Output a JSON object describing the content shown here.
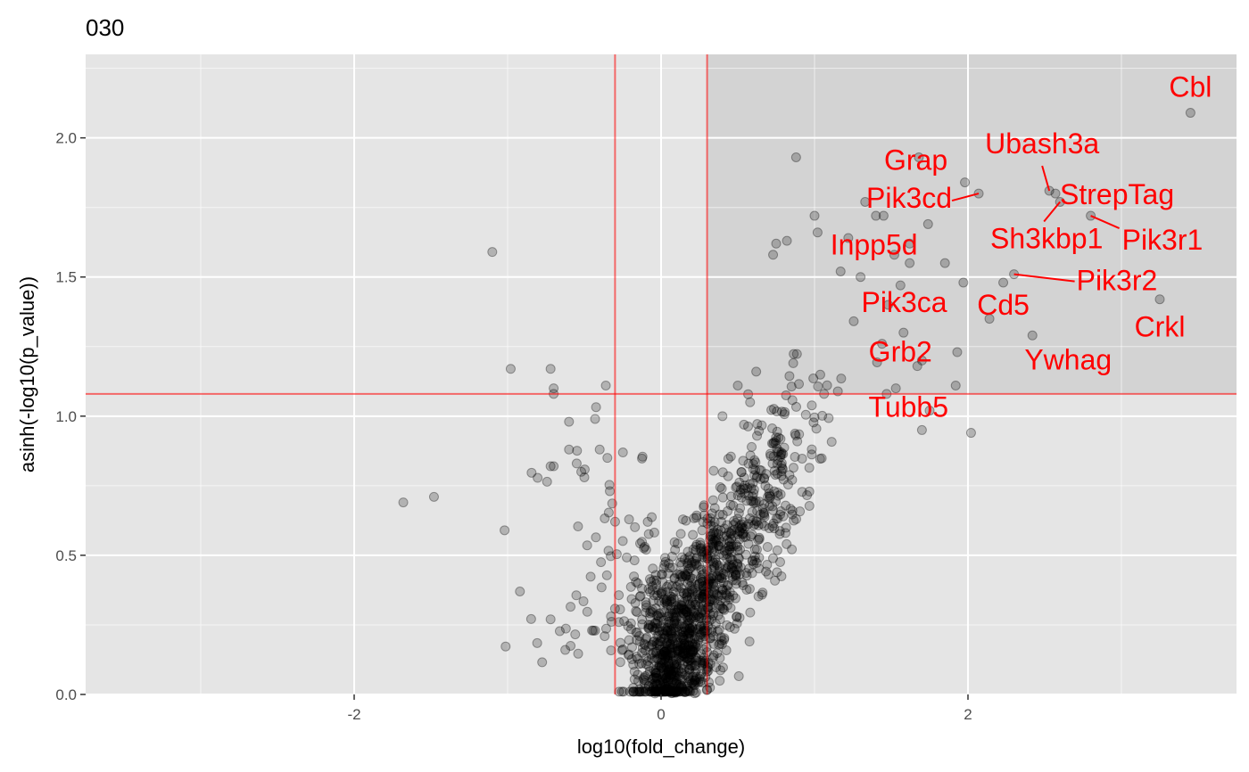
{
  "chart_data": {
    "type": "scatter",
    "title": "030",
    "xlabel": "log10(fold_change)",
    "ylabel": "asinh(-log10(p_value))",
    "xlim": [
      -3.75,
      3.75
    ],
    "ylim": [
      0,
      2.3
    ],
    "x_ticks": [
      -2,
      0,
      2
    ],
    "y_ticks": [
      0.0,
      0.5,
      1.0,
      1.5,
      2.0
    ],
    "x_tick_labels": [
      "-2",
      "0",
      "2"
    ],
    "y_tick_labels": [
      "0.0",
      "0.5",
      "1.0",
      "1.5",
      "2.0"
    ],
    "grid": true,
    "thresholds": {
      "x": [
        -0.3,
        0.3
      ],
      "y": 1.08
    },
    "highlight_region": {
      "x_min": 0.3,
      "y_min": 1.08
    },
    "colors": {
      "panel": "#e5e5e5",
      "highlight": "#d3d3d3",
      "grid": "#ffffff",
      "point": "#000000",
      "threshold": "#ff0000",
      "label": "#ff0000"
    },
    "labeled_points": [
      {
        "name": "Cbl",
        "x": 3.45,
        "y": 2.09
      },
      {
        "name": "Ubash3a",
        "x": 2.53,
        "y": 1.81
      },
      {
        "name": "StrepTag",
        "x": 2.57,
        "y": 1.8
      },
      {
        "name": "Grap",
        "x": 1.98,
        "y": 1.84
      },
      {
        "name": "Pik3cd",
        "x": 2.07,
        "y": 1.8
      },
      {
        "name": "Sh3kbp1",
        "x": 2.6,
        "y": 1.77
      },
      {
        "name": "Pik3r1",
        "x": 2.8,
        "y": 1.72
      },
      {
        "name": "Inpp5d",
        "x": 1.62,
        "y": 1.62
      },
      {
        "name": "Pik3r2",
        "x": 2.3,
        "y": 1.51
      },
      {
        "name": "Cd5",
        "x": 2.23,
        "y": 1.48
      },
      {
        "name": "Pik3ca",
        "x": 1.48,
        "y": 1.4
      },
      {
        "name": "Crkl",
        "x": 3.25,
        "y": 1.42
      },
      {
        "name": "Grb2",
        "x": 1.44,
        "y": 1.26
      },
      {
        "name": "Ywhag",
        "x": 2.42,
        "y": 1.29
      },
      {
        "name": "Tubb5",
        "x": 1.92,
        "y": 1.11
      }
    ],
    "points": [
      [
        3.45,
        2.09
      ],
      [
        2.53,
        1.81
      ],
      [
        2.57,
        1.8
      ],
      [
        1.98,
        1.84
      ],
      [
        2.07,
        1.8
      ],
      [
        2.6,
        1.77
      ],
      [
        2.8,
        1.72
      ],
      [
        1.62,
        1.62
      ],
      [
        2.3,
        1.51
      ],
      [
        2.23,
        1.48
      ],
      [
        1.48,
        1.4
      ],
      [
        3.25,
        1.42
      ],
      [
        1.44,
        1.26
      ],
      [
        2.42,
        1.29
      ],
      [
        1.92,
        1.11
      ],
      [
        0.88,
        1.93
      ],
      [
        1.68,
        1.93
      ],
      [
        1.62,
        1.55
      ],
      [
        1.85,
        1.55
      ],
      [
        1.97,
        1.48
      ],
      [
        2.14,
        1.35
      ],
      [
        1.93,
        1.23
      ],
      [
        2.02,
        0.94
      ],
      [
        1.75,
        1.02
      ],
      [
        1.45,
        1.72
      ],
      [
        1.33,
        1.77
      ],
      [
        1.4,
        1.72
      ],
      [
        1.22,
        1.64
      ],
      [
        1.02,
        1.66
      ],
      [
        1.3,
        1.5
      ],
      [
        1.17,
        1.52
      ],
      [
        0.82,
        1.63
      ],
      [
        0.75,
        1.62
      ],
      [
        0.73,
        1.58
      ],
      [
        1.0,
        1.72
      ],
      [
        1.52,
        1.58
      ],
      [
        1.74,
        1.69
      ],
      [
        1.56,
        1.47
      ],
      [
        1.58,
        1.3
      ],
      [
        1.7,
        1.2
      ],
      [
        1.67,
        1.18
      ],
      [
        1.47,
        1.08
      ],
      [
        1.53,
        1.1
      ],
      [
        1.7,
        0.95
      ],
      [
        -1.1,
        1.59
      ],
      [
        -0.98,
        1.17
      ],
      [
        -0.72,
        1.17
      ],
      [
        -0.7,
        1.1
      ],
      [
        -0.7,
        1.08
      ],
      [
        -0.36,
        1.11
      ],
      [
        -1.68,
        0.69
      ],
      [
        -1.48,
        0.71
      ],
      [
        -1.02,
        0.59
      ],
      [
        -0.92,
        0.37
      ],
      [
        -0.72,
        0.27
      ],
      [
        -0.6,
        0.98
      ],
      [
        -0.6,
        0.88
      ],
      [
        -0.55,
        0.83
      ],
      [
        -0.72,
        0.82
      ],
      [
        -0.7,
        0.82
      ],
      [
        -0.45,
        0.23
      ],
      [
        -0.43,
        0.99
      ],
      [
        -0.4,
        0.88
      ],
      [
        -0.35,
        0.85
      ],
      [
        -0.5,
        0.78
      ],
      [
        -0.52,
        0.8
      ],
      [
        0.5,
        1.11
      ],
      [
        0.62,
        1.16
      ],
      [
        0.4,
        1.0
      ],
      [
        0.58,
        1.05
      ],
      [
        0.28,
        0.68
      ],
      [
        0.35,
        0.67
      ],
      [
        0.15,
        0.18
      ],
      [
        0.1,
        0.12
      ],
      [
        0.05,
        0.08
      ],
      [
        0.02,
        0.05
      ],
      [
        0.08,
        0.28
      ],
      [
        0.12,
        0.25
      ],
      [
        0.18,
        0.22
      ],
      [
        -0.05,
        0.15
      ],
      [
        -0.1,
        0.2
      ],
      [
        0.0,
        0.02
      ],
      [
        0.2,
        0.35
      ],
      [
        0.25,
        0.4
      ]
    ]
  }
}
